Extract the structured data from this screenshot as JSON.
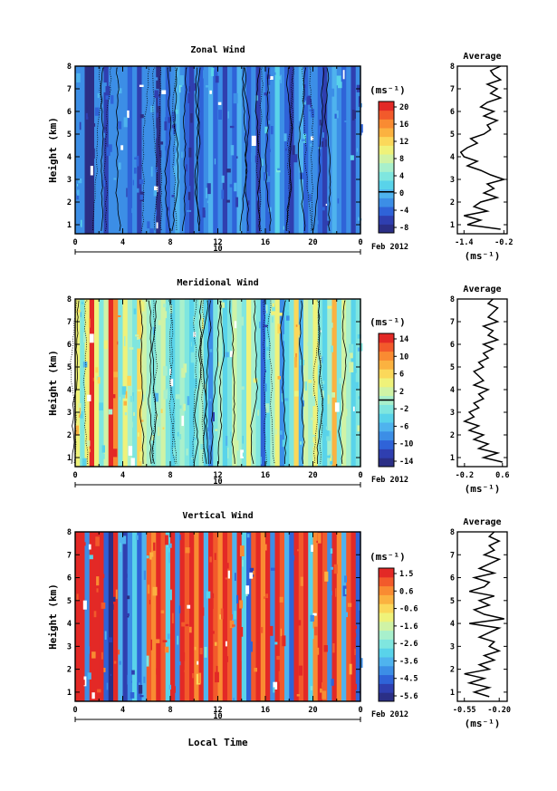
{
  "colors": {
    "scale": [
      "#2b2f86",
      "#2f3fb0",
      "#2f63d8",
      "#3c8ee6",
      "#4fb3ee",
      "#59d3ea",
      "#7fe6df",
      "#a8f0cc",
      "#d0f3a6",
      "#eff27a",
      "#fbd85a",
      "#fbb240",
      "#f98b32",
      "#f25a2b",
      "#e32926"
    ]
  },
  "shared": {
    "xlabel": "Local Time",
    "date_label": "10",
    "month_label": "Feb 2012",
    "ylabel": "Height (km)",
    "avg_title": "Average",
    "unit": "(ms⁻¹)"
  },
  "chart_data": [
    {
      "type": "heatmap",
      "title": "Zonal Wind",
      "xlabel": "Local Time",
      "ylabel": "Height (km)",
      "x_ticks": [
        "0",
        "4",
        "8",
        "12",
        "16",
        "20",
        "0"
      ],
      "x_range": [
        0,
        24
      ],
      "y_ticks": [
        "1",
        "2",
        "3",
        "4",
        "5",
        "6",
        "7",
        "8"
      ],
      "y_range": [
        0.6,
        8
      ],
      "colorbar_unit": "(ms⁻¹)",
      "colorbar_ticks": [
        "20",
        "16",
        "12",
        "8",
        "4",
        "0",
        "-4",
        "-8"
      ],
      "colorbar_range": [
        -10,
        22
      ],
      "colorbar_marker": 0,
      "profile_title": "Average",
      "profile_xticks": [
        "-1.4",
        "-0.2"
      ],
      "profile_xrange": [
        -1.6,
        -0.1
      ],
      "profile_xlabel": "(ms⁻¹)",
      "profile_y": [
        0.8,
        1.0,
        1.2,
        1.4,
        1.6,
        1.8,
        2.0,
        2.2,
        2.4,
        2.6,
        2.8,
        3.0,
        3.2,
        3.4,
        3.6,
        3.8,
        4.0,
        4.2,
        4.4,
        4.6,
        4.8,
        5.0,
        5.2,
        5.4,
        5.6,
        5.8,
        6.0,
        6.2,
        6.4,
        6.6,
        6.8,
        7.0,
        7.2,
        7.4,
        7.6,
        7.8,
        8.0
      ],
      "profile_values": [
        -0.3,
        -1.3,
        -0.9,
        -1.4,
        -0.7,
        -1.1,
        -0.9,
        -0.4,
        -0.8,
        -0.5,
        -0.7,
        -0.2,
        -0.6,
        -0.9,
        -1.3,
        -1.0,
        -1.4,
        -1.5,
        -1.3,
        -1.0,
        -1.2,
        -0.8,
        -0.6,
        -0.7,
        -0.4,
        -0.8,
        -0.5,
        -0.9,
        -0.7,
        -0.3,
        -0.6,
        -0.4,
        -0.7,
        -0.3,
        -0.5,
        -0.6,
        -0.3
      ]
    },
    {
      "type": "heatmap",
      "title": "Meridional Wind",
      "xlabel": "Local Time",
      "ylabel": "Height (km)",
      "x_ticks": [
        "0",
        "4",
        "8",
        "12",
        "16",
        "20",
        "0"
      ],
      "x_range": [
        0,
        24
      ],
      "y_ticks": [
        "1",
        "2",
        "3",
        "4",
        "5",
        "6",
        "7",
        "8"
      ],
      "y_range": [
        0.6,
        8
      ],
      "colorbar_unit": "(ms⁻¹)",
      "colorbar_ticks": [
        "14",
        "10",
        "6",
        "2",
        "-2",
        "-6",
        "-10",
        "-14"
      ],
      "colorbar_range": [
        -16,
        16
      ],
      "colorbar_marker": 0,
      "profile_title": "Average",
      "profile_xticks": [
        "-0.2",
        "0.6"
      ],
      "profile_xrange": [
        -0.35,
        0.7
      ],
      "profile_xlabel": "(ms⁻¹)",
      "profile_y": [
        0.8,
        1.0,
        1.2,
        1.4,
        1.6,
        1.8,
        2.0,
        2.2,
        2.4,
        2.6,
        2.8,
        3.0,
        3.2,
        3.4,
        3.6,
        3.8,
        4.0,
        4.2,
        4.4,
        4.6,
        4.8,
        5.0,
        5.2,
        5.4,
        5.6,
        5.8,
        6.0,
        6.2,
        6.4,
        6.6,
        6.8,
        7.0,
        7.2,
        7.4,
        7.6,
        7.8,
        8.0
      ],
      "profile_values": [
        0.6,
        0.2,
        0.5,
        0.1,
        0.3,
        0.0,
        0.2,
        -0.1,
        0.1,
        -0.2,
        0.0,
        -0.1,
        0.1,
        0.0,
        0.2,
        0.1,
        0.3,
        0.0,
        0.2,
        0.1,
        0.0,
        0.2,
        0.1,
        0.3,
        0.2,
        0.4,
        0.2,
        0.5,
        0.3,
        0.4,
        0.2,
        0.5,
        0.3,
        0.4,
        0.5,
        0.3,
        0.4
      ]
    },
    {
      "type": "heatmap",
      "title": "Vertical Wind",
      "xlabel": "Local Time",
      "ylabel": "Height (km)",
      "x_ticks": [
        "0",
        "4",
        "8",
        "12",
        "16",
        "20",
        "0"
      ],
      "x_range": [
        0,
        24
      ],
      "y_ticks": [
        "1",
        "2",
        "3",
        "4",
        "5",
        "6",
        "7",
        "8"
      ],
      "y_range": [
        0.6,
        8
      ],
      "colorbar_unit": "(ms⁻¹)",
      "colorbar_ticks": [
        "1.5",
        "0.6",
        "-0.6",
        "-1.6",
        "-2.6",
        "-3.6",
        "-4.5",
        "-5.6"
      ],
      "colorbar_range": [
        -6,
        2
      ],
      "colorbar_marker": null,
      "profile_title": "Average",
      "profile_xticks": [
        "-0.55",
        "-0.20"
      ],
      "profile_xrange": [
        -0.62,
        -0.12
      ],
      "profile_xlabel": "(ms⁻¹)",
      "profile_y": [
        0.8,
        1.0,
        1.2,
        1.4,
        1.6,
        1.8,
        2.0,
        2.2,
        2.4,
        2.6,
        2.8,
        3.0,
        3.2,
        3.4,
        3.6,
        3.8,
        4.0,
        4.2,
        4.4,
        4.6,
        4.8,
        5.0,
        5.2,
        5.4,
        5.6,
        5.8,
        6.0,
        6.2,
        6.4,
        6.6,
        6.8,
        7.0,
        7.2,
        7.4,
        7.6,
        7.8,
        8.0
      ],
      "profile_values": [
        -0.3,
        -0.45,
        -0.3,
        -0.5,
        -0.35,
        -0.55,
        -0.3,
        -0.4,
        -0.25,
        -0.35,
        -0.2,
        -0.3,
        -0.25,
        -0.4,
        -0.3,
        -0.2,
        -0.5,
        -0.15,
        -0.35,
        -0.45,
        -0.3,
        -0.4,
        -0.25,
        -0.5,
        -0.35,
        -0.3,
        -0.45,
        -0.25,
        -0.4,
        -0.3,
        -0.2,
        -0.35,
        -0.25,
        -0.3,
        -0.2,
        -0.3,
        -0.25
      ]
    }
  ]
}
